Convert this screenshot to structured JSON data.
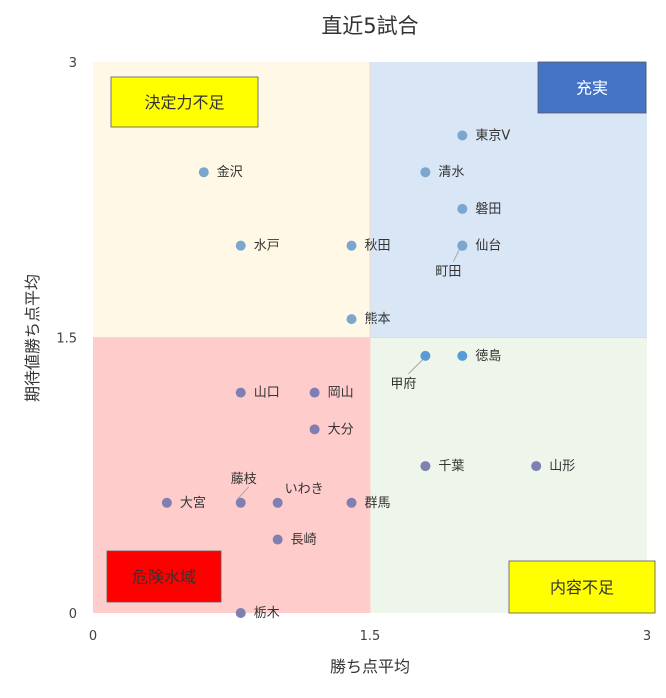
{
  "chart_data": {
    "type": "scatter",
    "title": "直近5試合",
    "xlabel": "勝ち点平均",
    "ylabel": "期待値勝ち点平均",
    "xlim": [
      0,
      3
    ],
    "ylim": [
      0,
      3
    ],
    "x_ticks": [
      "0",
      "1.5",
      "3"
    ],
    "y_ticks": [
      "0",
      "1.5",
      "3"
    ],
    "quadrants": [
      {
        "label": "決定力不足",
        "position": "top-left",
        "bg": "#fff8e6",
        "label_bg": "#ffff00",
        "label_color": "#333333"
      },
      {
        "label": "充実",
        "position": "top-right",
        "bg": "#d9e6f5",
        "label_bg": "#4472c4",
        "label_color": "#ffffff"
      },
      {
        "label": "危険水域",
        "position": "bottom-left",
        "bg": "#ffcccc",
        "label_bg": "#ff0000",
        "label_color": "#333333"
      },
      {
        "label": "内容不足",
        "position": "bottom-right",
        "bg": "#eef5ea",
        "label_bg": "#ffff00",
        "label_color": "#333333"
      }
    ],
    "points": [
      {
        "label": "東京V",
        "x": 2.0,
        "y": 2.6
      },
      {
        "label": "清水",
        "x": 1.8,
        "y": 2.4
      },
      {
        "label": "金沢",
        "x": 0.6,
        "y": 2.4
      },
      {
        "label": "磐田",
        "x": 2.0,
        "y": 2.2
      },
      {
        "label": "水戸",
        "x": 0.8,
        "y": 2.0
      },
      {
        "label": "秋田",
        "x": 1.4,
        "y": 2.0
      },
      {
        "label": "仙台",
        "x": 2.0,
        "y": 2.0
      },
      {
        "label": "町田",
        "x": 2.0,
        "y": 2.0
      },
      {
        "label": "熊本",
        "x": 1.4,
        "y": 1.6
      },
      {
        "label": "甲府",
        "x": 1.8,
        "y": 1.4
      },
      {
        "label": "徳島",
        "x": 2.0,
        "y": 1.4
      },
      {
        "label": "山口",
        "x": 0.8,
        "y": 1.2
      },
      {
        "label": "岡山",
        "x": 1.2,
        "y": 1.2
      },
      {
        "label": "大分",
        "x": 1.2,
        "y": 1.0
      },
      {
        "label": "千葉",
        "x": 1.8,
        "y": 0.8
      },
      {
        "label": "山形",
        "x": 2.4,
        "y": 0.8
      },
      {
        "label": "藤枝",
        "x": 0.8,
        "y": 0.6
      },
      {
        "label": "いわき",
        "x": 1.0,
        "y": 0.6
      },
      {
        "label": "大宮",
        "x": 0.4,
        "y": 0.6
      },
      {
        "label": "群馬",
        "x": 1.4,
        "y": 0.6
      },
      {
        "label": "長崎",
        "x": 1.0,
        "y": 0.4
      },
      {
        "label": "栃木",
        "x": 0.8,
        "y": 0.0
      }
    ],
    "colors": {
      "top": "#7ba7cf",
      "mid": "#5b9bd5",
      "bottom": "#7f7fb2"
    }
  }
}
